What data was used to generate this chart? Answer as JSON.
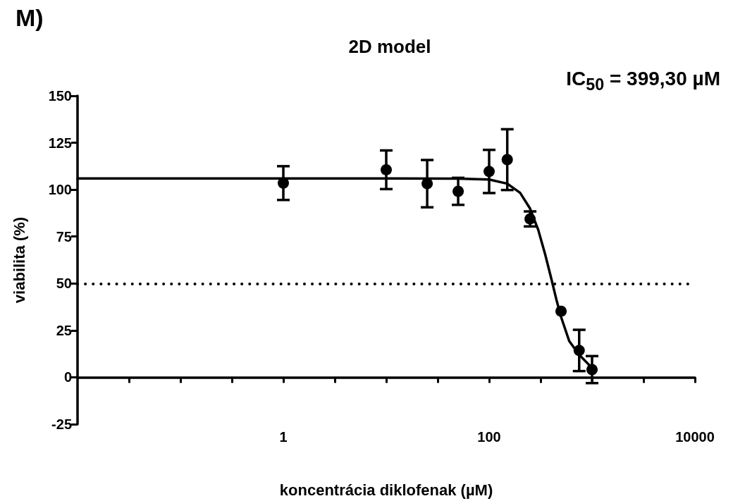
{
  "chart_data": {
    "type": "scatter",
    "title": "2D model",
    "xlabel": "koncentrácia diklofenak (µM)",
    "ylabel": "viabilita (%)",
    "annotations": [
      "M)",
      "IC$_{50}$ = 399,30 µM"
    ],
    "log": "x",
    "xlim": [
      0.01,
      10000
    ],
    "ylim": [
      -25,
      150
    ],
    "xticks": [
      {
        "value": 0.0316,
        "label": null
      },
      {
        "value": 0.1,
        "label": null
      },
      {
        "value": 0.316,
        "label": null
      },
      1,
      {
        "value": 3.16,
        "label": null
      },
      {
        "value": 10,
        "label": null
      },
      {
        "value": 31.6,
        "label": null
      },
      100,
      {
        "value": 316,
        "label": null
      },
      {
        "value": 1000,
        "label": null
      },
      {
        "value": 3162,
        "label": null
      },
      10000
    ],
    "yticks": [
      -25,
      0,
      25,
      50,
      75,
      100,
      125,
      150
    ],
    "grid": false,
    "marker": "circle",
    "ref_lines": [
      {
        "axis": "y",
        "value": 50,
        "line_style": "dotted",
        "color": "#000000"
      }
    ],
    "series": [
      {
        "color": "#000000",
        "x": [
          1,
          10,
          25,
          50,
          100,
          150,
          250,
          500,
          750,
          1000
        ],
        "values": [
          103.5,
          110.6,
          103.2,
          99.1,
          109.7,
          116,
          84.4,
          35.2,
          14.3,
          4.1
        ],
        "errors": [
          9,
          10.3,
          12.6,
          7.2,
          11.5,
          16.2,
          4,
          null,
          11,
          7.2
        ]
      },
      {
        "type": "line",
        "color": "#000000",
        "marker": "none",
        "line_style": "solid",
        "x": [
          0.01,
          1,
          10,
          50,
          100,
          150,
          200,
          250,
          300,
          350,
          400,
          450,
          500,
          600,
          750,
          1000
        ],
        "values": [
          106,
          106,
          106,
          105.9,
          105.4,
          103.2,
          98.3,
          89.9,
          78.6,
          65.6,
          53,
          41.5,
          32.2,
          19.3,
          12,
          5
        ]
      }
    ]
  }
}
